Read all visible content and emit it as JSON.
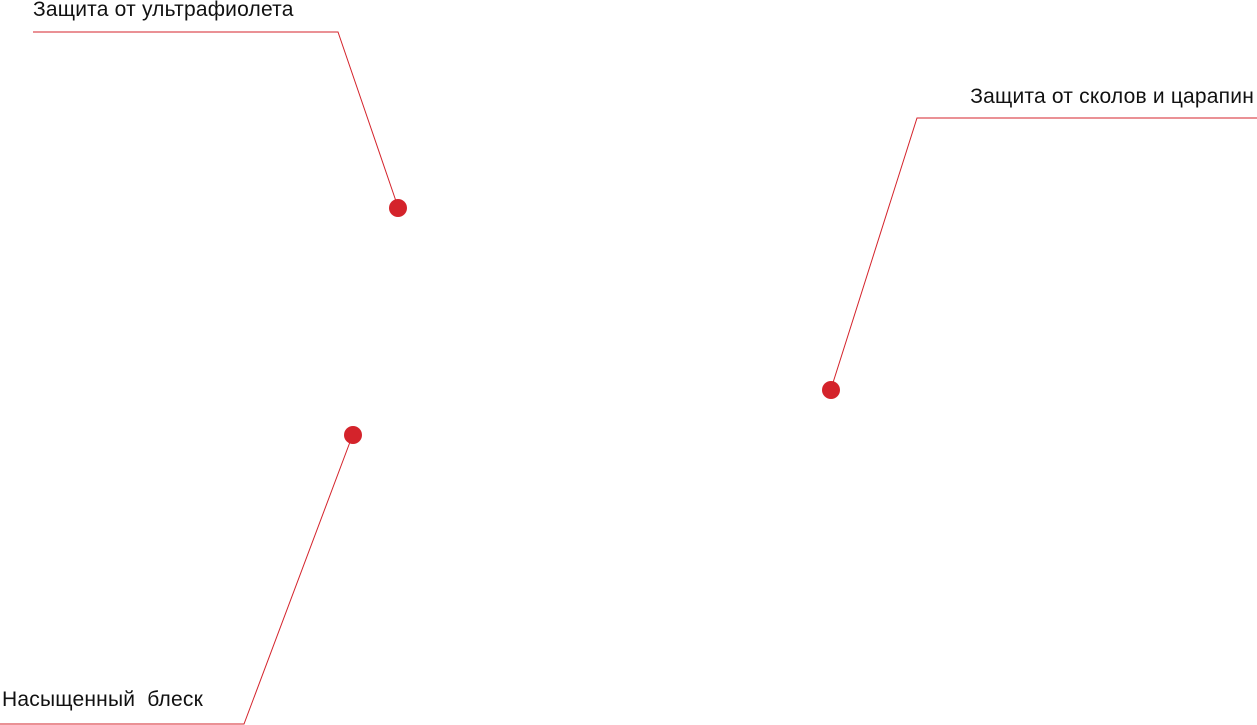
{
  "callouts": {
    "uv": {
      "label": "Защита от ультрафиолета"
    },
    "chips": {
      "label": "Защита от сколов и царапин"
    },
    "gloss": {
      "label": "Насыщенный  блеск"
    }
  },
  "colors": {
    "accent": "#d4232b",
    "text": "#111111",
    "background": "#ffffff"
  }
}
